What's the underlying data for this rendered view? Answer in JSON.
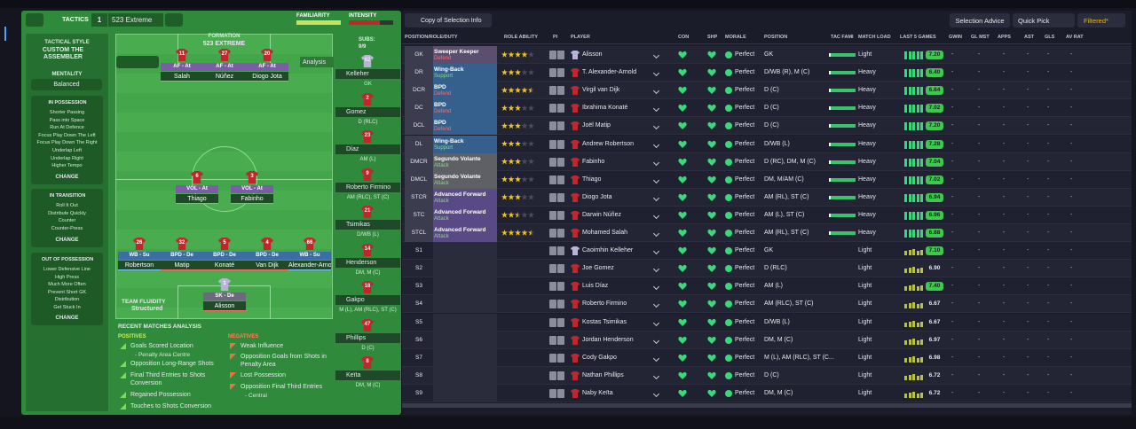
{
  "top_bar": {
    "tactics": "TACTICS",
    "tactic_slot": "1",
    "tactic_name": "523 Extreme",
    "familiarity": "FAMILIARITY",
    "intensity": "INTENSITY"
  },
  "sidebar": {
    "style_label": "TACTICAL STYLE",
    "style_name": "CUSTOM THE ASSEMBLER",
    "mentality_label": "MENTALITY",
    "mentality": "Balanced",
    "phases": [
      {
        "title": "IN POSSESSION",
        "items": [
          "Shorter Passing",
          "Pass into Space",
          "Run At Defence",
          "Focus Play Down The Left",
          "Focus Play Down The Right",
          "Underlap Left",
          "Underlap Right",
          "Higher Tempo"
        ],
        "button": "CHANGE"
      },
      {
        "title": "IN TRANSITION",
        "items": [
          "Roll It Out",
          "Distribute Quickly",
          "Counter",
          "Counter-Press"
        ],
        "button": "CHANGE"
      },
      {
        "title": "OUT OF POSSESSION",
        "items": [
          "Lower Defensive Line",
          "High Press",
          "Much More Often",
          "Prevent Short GK",
          "Distribution",
          "Get Stuck In"
        ],
        "button": "CHANGE"
      }
    ]
  },
  "pitch": {
    "formation_label": "FORMATION",
    "formation": "523 EXTREME",
    "subs_label": "SUBS:",
    "subs_count": "9/9",
    "analysis": "Analysis",
    "fluidity_label": "TEAM FLUIDITY",
    "fluidity": "Structured",
    "players": [
      {
        "number": "11",
        "role": "AF - At",
        "name": "Salah"
      },
      {
        "number": "27",
        "role": "AF - At",
        "name": "Núñez"
      },
      {
        "number": "20",
        "role": "AF - At",
        "name": "Diogo Jota"
      },
      {
        "number": "6",
        "role": "VOL - At",
        "name": "Thiago"
      },
      {
        "number": "3",
        "role": "VOL - At",
        "name": "Fabinho"
      },
      {
        "number": "26",
        "role": "WB - Su",
        "name": "Robertson"
      },
      {
        "number": "32",
        "role": "BPD - De",
        "name": "Matip"
      },
      {
        "number": "5",
        "role": "BPD - De",
        "name": "Konaté"
      },
      {
        "number": "4",
        "role": "BPD - De",
        "name": "Van Dijk"
      },
      {
        "number": "66",
        "role": "WB - Su",
        "name": "Alexander-Arnold"
      },
      {
        "number": "1",
        "role": "SK - De",
        "name": "Alisson"
      }
    ],
    "subs": [
      {
        "number": "62",
        "name": "Kelleher",
        "position": "GK"
      },
      {
        "number": "2",
        "name": "Gomez",
        "position": "D (RLC)"
      },
      {
        "number": "23",
        "name": "Díaz",
        "position": "AM (L)"
      },
      {
        "number": "9",
        "name": "Roberto Firmino",
        "position": "AM (RLC), ST (C)"
      },
      {
        "number": "21",
        "name": "Tsimikas",
        "position": "D/WB (L)"
      },
      {
        "number": "14",
        "name": "Henderson",
        "position": "DM, M (C)"
      },
      {
        "number": "18",
        "name": "Gakpo",
        "position": "M (L), AM (RLC), ST (C)"
      },
      {
        "number": "47",
        "name": "Phillips",
        "position": "D (C)"
      },
      {
        "number": "8",
        "name": "Keïta",
        "position": "DM, M (C)"
      }
    ]
  },
  "analysis": {
    "title": "RECENT MATCHES ANALYSIS",
    "positives_label": "POSITIVES",
    "positives": [
      {
        "text": "Goals Scored Location",
        "detail": "- Penalty Area Centre"
      },
      {
        "text": "Opposition Long-Range Shots"
      },
      {
        "text": "Final Third Entries to Shots Conversion"
      },
      {
        "text": "Regained Possession"
      },
      {
        "text": "Touches to Shots Conversion"
      }
    ],
    "negatives_label": "NEGATIVES",
    "negatives": [
      {
        "text": "Weak Influence"
      },
      {
        "text": "Opposition Goals from Shots in Penalty Area"
      },
      {
        "text": "Lost Possession"
      },
      {
        "text": "Opposition Final Third Entries",
        "detail": "- Central"
      }
    ]
  },
  "toolbar": {
    "view": "Copy of Selection Info",
    "advice": "Selection Advice",
    "quick_pick": "Quick Pick",
    "filter": "Filtered*"
  },
  "table": {
    "columns": [
      "POSITION/ROLE/DUTY",
      "ROLE ABILITY",
      "PI",
      "PLAYER",
      "CON",
      "SHP",
      "MORALE",
      "POSITION",
      "TAC FAMI",
      "MATCH LOAD",
      "LAST 5 GAMES",
      "GWIN",
      "GL MST",
      "APPS",
      "AST",
      "GLS",
      "AV RAT"
    ],
    "rows": [
      {
        "slot": "GK",
        "role": "Sweeper Keeper",
        "duty": "Defend",
        "color": "#5b4e6e",
        "stars": 4,
        "player": "Alisson",
        "morale": "Perfect",
        "position": "GK",
        "load": "Light",
        "rating": "7.20",
        "stats": [
          "-",
          "-",
          "-",
          "-",
          "-",
          "-"
        ]
      },
      {
        "slot": "DR",
        "role": "Wing-Back",
        "duty": "Support",
        "color": "#35608e",
        "stars": 3,
        "player": "T. Alexander-Arnold",
        "morale": "Perfect",
        "position": "D/WB (R), M (C)",
        "load": "Heavy",
        "rating": "6.40",
        "stats": [
          "-",
          "-",
          "-",
          "-",
          "-",
          "-"
        ]
      },
      {
        "slot": "DCR",
        "role": "BPD",
        "duty": "Defend",
        "color": "#35608e",
        "stars": 4.5,
        "player": "Virgil van Dijk",
        "morale": "Perfect",
        "position": "D (C)",
        "load": "Heavy",
        "rating": "6.64",
        "stats": [
          "-",
          "-",
          "-",
          "-",
          "-",
          "-"
        ]
      },
      {
        "slot": "DC",
        "role": "BPD",
        "duty": "Defend",
        "color": "#35608e",
        "stars": 3,
        "player": "Ibrahima Konaté",
        "morale": "Perfect",
        "position": "D (C)",
        "load": "Heavy",
        "rating": "7.02",
        "stats": [
          "-",
          "-",
          "-",
          "-",
          "-",
          "-"
        ]
      },
      {
        "slot": "DCL",
        "role": "BPD",
        "duty": "Defend",
        "color": "#35608e",
        "stars": 3,
        "player": "Joël Matip",
        "morale": "Perfect",
        "position": "D (C)",
        "load": "Heavy",
        "rating": "7.20",
        "stats": [
          "-",
          "-",
          "-",
          "-",
          "-",
          "-"
        ]
      },
      {
        "slot": "DL",
        "role": "Wing-Back",
        "duty": "Support",
        "color": "#35608e",
        "stars": 3,
        "player": "Andrew Robertson",
        "morale": "Perfect",
        "position": "D/WB (L)",
        "load": "Heavy",
        "rating": "7.28",
        "stats": [
          "-",
          "-",
          "-",
          "-",
          "-",
          "-"
        ]
      },
      {
        "slot": "DMCR",
        "role": "Segundo Volante",
        "duty": "Attack",
        "color": "#5f5f66",
        "stars": 3,
        "player": "Fabinho",
        "morale": "Perfect",
        "position": "D (RC), DM, M (C)",
        "load": "Heavy",
        "rating": "7.04",
        "stats": [
          "-",
          "-",
          "-",
          "-",
          "-",
          "-"
        ]
      },
      {
        "slot": "DMCL",
        "role": "Segundo Volante",
        "duty": "Attack",
        "color": "#5f5f66",
        "stars": 3,
        "player": "Thiago",
        "morale": "Perfect",
        "position": "DM, M/AM (C)",
        "load": "Heavy",
        "rating": "7.02",
        "stats": [
          "-",
          "-",
          "-",
          "-",
          "-",
          "-"
        ]
      },
      {
        "slot": "STCR",
        "role": "Advanced Forward",
        "duty": "Attack",
        "color": "#594a85",
        "stars": 3,
        "player": "Diogo Jota",
        "morale": "Perfect",
        "position": "AM (RL), ST (C)",
        "load": "Heavy",
        "rating": "6.94",
        "stats": [
          "-",
          "-",
          "-",
          "-",
          "-",
          "-"
        ]
      },
      {
        "slot": "STC",
        "role": "Advanced Forward",
        "duty": "Attack",
        "color": "#594a85",
        "stars": 2.5,
        "player": "Darwin Núñez",
        "morale": "Perfect",
        "position": "AM (L), ST (C)",
        "load": "Heavy",
        "rating": "6.96",
        "stats": [
          "-",
          "-",
          "-",
          "-",
          "-",
          "-"
        ]
      },
      {
        "slot": "STCL",
        "role": "Advanced Forward",
        "duty": "Attack",
        "color": "#594a85",
        "stars": 4.5,
        "player": "Mohamed Salah",
        "morale": "Perfect",
        "position": "AM (RL), ST (C)",
        "load": "Heavy",
        "rating": "6.88",
        "stats": [
          "-",
          "-",
          "-",
          "-",
          "-",
          "-"
        ]
      },
      {
        "slot": "S1",
        "player": "Caoimhin Kelleher",
        "morale": "Perfect",
        "position": "GK",
        "load": "Light",
        "rating": "7.10",
        "stats": [
          "-",
          "-",
          "-",
          "-",
          "-",
          "-"
        ]
      },
      {
        "slot": "S2",
        "player": "Joe Gomez",
        "morale": "Perfect",
        "position": "D (RLC)",
        "load": "Light",
        "rating": "6.90",
        "stats": [
          "-",
          "-",
          "-",
          "-",
          "-",
          "-"
        ]
      },
      {
        "slot": "S3",
        "player": "Luis Díaz",
        "morale": "Perfect",
        "position": "AM (L)",
        "load": "Light",
        "rating": "7.40",
        "stats": [
          "-",
          "-",
          "-",
          "-",
          "-",
          "-"
        ]
      },
      {
        "slot": "S4",
        "player": "Roberto Firmino",
        "morale": "Perfect",
        "position": "AM (RLC), ST (C)",
        "load": "Light",
        "rating": "6.67",
        "stats": [
          "-",
          "-",
          "-",
          "-",
          "-",
          "-"
        ]
      },
      {
        "slot": "S5",
        "player": "Kostas Tsimikas",
        "morale": "Perfect",
        "position": "D/WB (L)",
        "load": "Light",
        "rating": "6.67",
        "stats": [
          "-",
          "-",
          "-",
          "-",
          "-",
          "-"
        ]
      },
      {
        "slot": "S6",
        "player": "Jordan Henderson",
        "morale": "Perfect",
        "position": "DM, M (C)",
        "load": "Light",
        "rating": "6.97",
        "stats": [
          "-",
          "-",
          "-",
          "-",
          "-",
          "-"
        ]
      },
      {
        "slot": "S7",
        "player": "Cody Gakpo",
        "morale": "Perfect",
        "position": "M (L), AM (RLC), ST (C...",
        "load": "Light",
        "rating": "6.98",
        "stats": [
          "-",
          "-",
          "-",
          "-",
          "-",
          "-"
        ]
      },
      {
        "slot": "S8",
        "player": "Nathan Phillips",
        "morale": "Perfect",
        "position": "D (C)",
        "load": "Light",
        "rating": "6.72",
        "stats": [
          "-",
          "-",
          "-",
          "-",
          "-",
          "-"
        ]
      },
      {
        "slot": "S9",
        "player": "Naby Keïta",
        "morale": "Perfect",
        "position": "DM, M (C)",
        "load": "Light",
        "rating": "6.72",
        "stats": [
          "-",
          "-",
          "-",
          "-",
          "-",
          "-"
        ]
      }
    ]
  }
}
